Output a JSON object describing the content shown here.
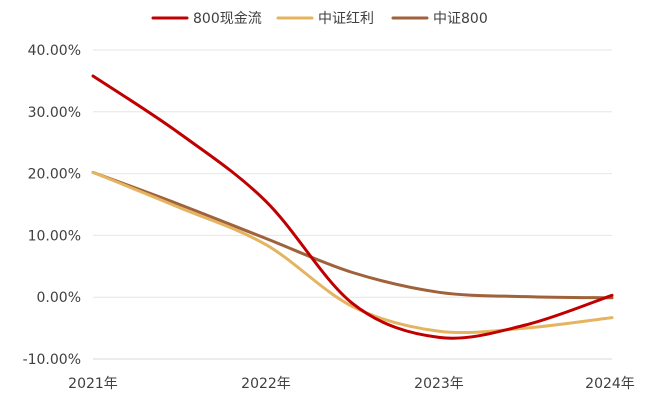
{
  "chart_data": {
    "type": "line",
    "title": "",
    "xlabel": "",
    "ylabel": "",
    "categories": [
      "2021年",
      "2022年",
      "2023年",
      "2024年"
    ],
    "ylim": [
      -10,
      40
    ],
    "y_ticks": [
      "40.00%",
      "30.00%",
      "20.00%",
      "10.00%",
      "0.00%",
      "-10.00%"
    ],
    "grid": true,
    "legend_position": "top-center",
    "smooth": true,
    "series": [
      {
        "name": "800现金流",
        "color": "#C00000",
        "x": [
          0,
          0.5,
          1,
          1.5,
          2,
          2.5,
          3
        ],
        "values": [
          35.8,
          26.5,
          15.5,
          -1.0,
          -6.5,
          -4.5,
          0.3
        ]
      },
      {
        "name": "中证红利",
        "color": "#E4B461",
        "x": [
          0,
          0.5,
          1,
          1.5,
          2,
          2.5,
          3
        ],
        "values": [
          20.2,
          14.5,
          8.5,
          -1.5,
          -5.5,
          -5.0,
          -3.3
        ]
      },
      {
        "name": "中证800",
        "color": "#A0623A",
        "x": [
          0,
          0.5,
          1,
          1.5,
          2,
          2.5,
          3
        ],
        "values": [
          20.2,
          15.0,
          9.5,
          4.0,
          0.8,
          0.1,
          -0.1
        ]
      }
    ]
  }
}
